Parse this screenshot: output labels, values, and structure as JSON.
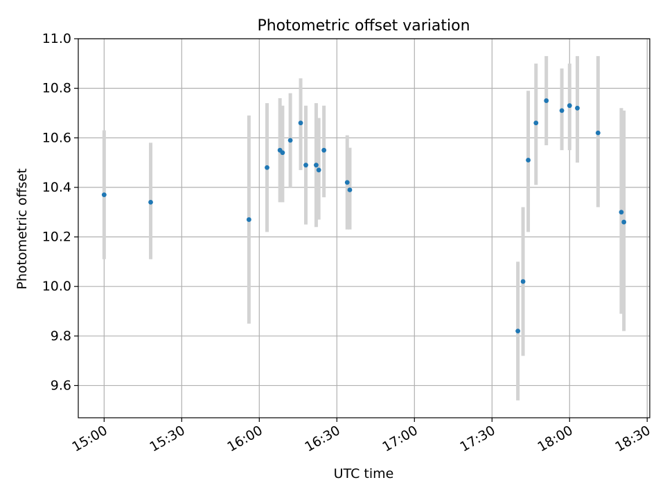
{
  "chart_data": {
    "type": "scatter",
    "title": "Photometric offset variation",
    "xlabel": "UTC time",
    "ylabel": "Photometric offset",
    "ylim": [
      9.47,
      11.0
    ],
    "xlim": [
      "14:50",
      "18:31"
    ],
    "xticks": [
      "15:00",
      "15:30",
      "16:00",
      "16:30",
      "17:00",
      "17:30",
      "18:00",
      "18:30"
    ],
    "yticks": [
      "9.6",
      "9.8",
      "10.0",
      "10.2",
      "10.4",
      "10.6",
      "10.8",
      "11.0"
    ],
    "grid": true,
    "marker_color": "#1f77b4",
    "errorbar_color": "#d3d3d3",
    "points": [
      {
        "t": "15:00",
        "y": 10.37,
        "lo": 10.11,
        "hi": 10.63
      },
      {
        "t": "15:18",
        "y": 10.34,
        "lo": 10.11,
        "hi": 10.58
      },
      {
        "t": "15:56",
        "y": 10.27,
        "lo": 9.85,
        "hi": 10.69
      },
      {
        "t": "16:03",
        "y": 10.48,
        "lo": 10.22,
        "hi": 10.74
      },
      {
        "t": "16:08",
        "y": 10.55,
        "lo": 10.34,
        "hi": 10.76
      },
      {
        "t": "16:09",
        "y": 10.54,
        "lo": 10.34,
        "hi": 10.73
      },
      {
        "t": "16:12",
        "y": 10.59,
        "lo": 10.4,
        "hi": 10.78
      },
      {
        "t": "16:16",
        "y": 10.66,
        "lo": 10.47,
        "hi": 10.84
      },
      {
        "t": "16:18",
        "y": 10.49,
        "lo": 10.25,
        "hi": 10.73
      },
      {
        "t": "16:22",
        "y": 10.49,
        "lo": 10.24,
        "hi": 10.74
      },
      {
        "t": "16:23",
        "y": 10.47,
        "lo": 10.27,
        "hi": 10.68
      },
      {
        "t": "16:25",
        "y": 10.55,
        "lo": 10.36,
        "hi": 10.73
      },
      {
        "t": "16:34",
        "y": 10.42,
        "lo": 10.23,
        "hi": 10.61
      },
      {
        "t": "16:35",
        "y": 10.39,
        "lo": 10.23,
        "hi": 10.56
      },
      {
        "t": "17:40",
        "y": 9.82,
        "lo": 9.54,
        "hi": 10.1
      },
      {
        "t": "17:42",
        "y": 10.02,
        "lo": 9.72,
        "hi": 10.32
      },
      {
        "t": "17:44",
        "y": 10.51,
        "lo": 10.22,
        "hi": 10.79
      },
      {
        "t": "17:47",
        "y": 10.66,
        "lo": 10.41,
        "hi": 10.9
      },
      {
        "t": "17:51",
        "y": 10.75,
        "lo": 10.57,
        "hi": 10.93
      },
      {
        "t": "17:57",
        "y": 10.71,
        "lo": 10.55,
        "hi": 10.88
      },
      {
        "t": "18:00",
        "y": 10.73,
        "lo": 10.55,
        "hi": 10.9
      },
      {
        "t": "18:03",
        "y": 10.72,
        "lo": 10.5,
        "hi": 10.93
      },
      {
        "t": "18:11",
        "y": 10.62,
        "lo": 10.32,
        "hi": 10.93
      },
      {
        "t": "18:20",
        "y": 10.3,
        "lo": 9.89,
        "hi": 10.72
      },
      {
        "t": "18:21",
        "y": 10.26,
        "lo": 9.82,
        "hi": 10.71
      }
    ]
  }
}
